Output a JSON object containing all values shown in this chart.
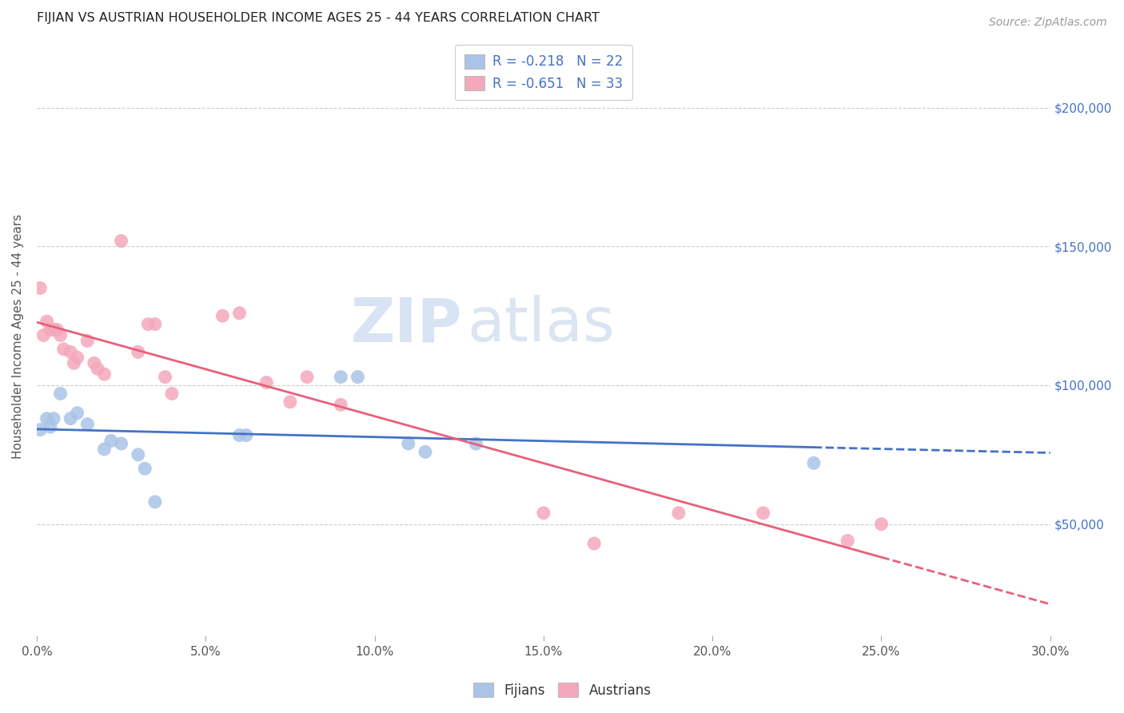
{
  "title": "FIJIAN VS AUSTRIAN HOUSEHOLDER INCOME AGES 25 - 44 YEARS CORRELATION CHART",
  "source": "Source: ZipAtlas.com",
  "xlabel_ticks": [
    "0.0%",
    "5.0%",
    "10.0%",
    "15.0%",
    "20.0%",
    "25.0%",
    "30.0%"
  ],
  "xlabel_vals": [
    0.0,
    0.05,
    0.1,
    0.15,
    0.2,
    0.25,
    0.3
  ],
  "ylabel_right_ticks": [
    "$50,000",
    "$100,000",
    "$150,000",
    "$200,000"
  ],
  "ylabel_right_vals": [
    50000,
    100000,
    150000,
    200000
  ],
  "xlim": [
    0.0,
    0.3
  ],
  "ylim": [
    10000,
    225000
  ],
  "watermark_zip": "ZIP",
  "watermark_atlas": "atlas",
  "legend": {
    "fijian_label": "R = -0.218   N = 22",
    "austrian_label": "R = -0.651   N = 33"
  },
  "bottom_legend": [
    "Fijians",
    "Austrians"
  ],
  "fijian_color": "#aac4e8",
  "austrian_color": "#f4a8bc",
  "fijian_line_color": "#4472c4",
  "austrian_line_color": "#e8607a",
  "fijian_points": [
    [
      0.001,
      84000
    ],
    [
      0.003,
      88000
    ],
    [
      0.004,
      85000
    ],
    [
      0.005,
      88000
    ],
    [
      0.007,
      97000
    ],
    [
      0.01,
      88000
    ],
    [
      0.012,
      90000
    ],
    [
      0.015,
      86000
    ],
    [
      0.02,
      77000
    ],
    [
      0.022,
      80000
    ],
    [
      0.025,
      79000
    ],
    [
      0.03,
      75000
    ],
    [
      0.032,
      70000
    ],
    [
      0.035,
      58000
    ],
    [
      0.06,
      82000
    ],
    [
      0.062,
      82000
    ],
    [
      0.09,
      103000
    ],
    [
      0.095,
      103000
    ],
    [
      0.11,
      79000
    ],
    [
      0.115,
      76000
    ],
    [
      0.13,
      79000
    ],
    [
      0.23,
      72000
    ]
  ],
  "austrian_points": [
    [
      0.001,
      135000
    ],
    [
      0.002,
      118000
    ],
    [
      0.003,
      123000
    ],
    [
      0.004,
      120000
    ],
    [
      0.005,
      120000
    ],
    [
      0.006,
      120000
    ],
    [
      0.007,
      118000
    ],
    [
      0.008,
      113000
    ],
    [
      0.01,
      112000
    ],
    [
      0.011,
      108000
    ],
    [
      0.012,
      110000
    ],
    [
      0.015,
      116000
    ],
    [
      0.017,
      108000
    ],
    [
      0.018,
      106000
    ],
    [
      0.02,
      104000
    ],
    [
      0.025,
      152000
    ],
    [
      0.03,
      112000
    ],
    [
      0.033,
      122000
    ],
    [
      0.035,
      122000
    ],
    [
      0.038,
      103000
    ],
    [
      0.04,
      97000
    ],
    [
      0.055,
      125000
    ],
    [
      0.06,
      126000
    ],
    [
      0.068,
      101000
    ],
    [
      0.075,
      94000
    ],
    [
      0.08,
      103000
    ],
    [
      0.09,
      93000
    ],
    [
      0.15,
      54000
    ],
    [
      0.165,
      43000
    ],
    [
      0.19,
      54000
    ],
    [
      0.215,
      54000
    ],
    [
      0.24,
      44000
    ],
    [
      0.25,
      50000
    ]
  ],
  "title_fontsize": 11.5,
  "axis_label_fontsize": 11,
  "tick_fontsize": 11,
  "legend_fontsize": 12,
  "source_fontsize": 10,
  "marker_size": 150,
  "background_color": "#ffffff",
  "grid_color": "#cccccc",
  "right_tick_color": "#4472c4"
}
